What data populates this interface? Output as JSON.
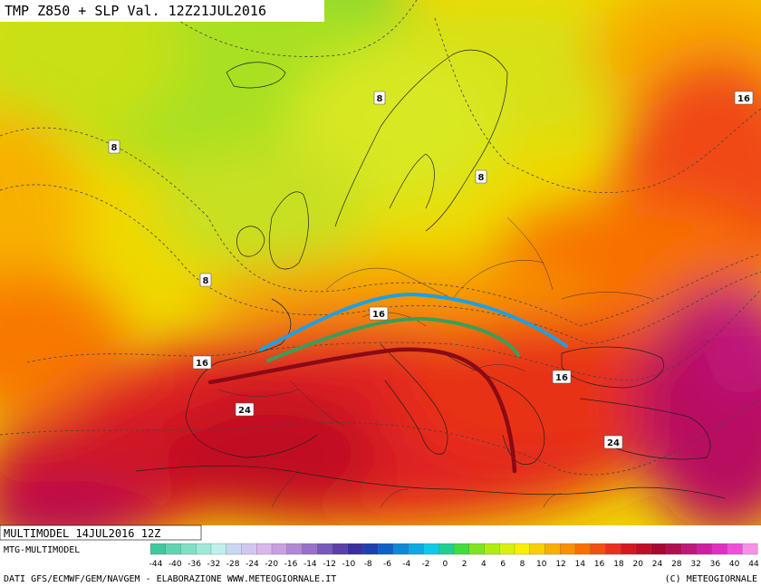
{
  "header": {
    "title": "TMP Z850 + SLP Val. 12Z21JUL2016"
  },
  "map": {
    "isotherm_labels": [
      {
        "value": "8",
        "id": "label-8-north-atlantic"
      },
      {
        "value": "8",
        "id": "label-8-norway"
      },
      {
        "value": "8",
        "id": "label-8-baltic"
      },
      {
        "value": "8",
        "id": "label-8-biscay"
      },
      {
        "value": "16",
        "id": "label-16-russia"
      },
      {
        "value": "16",
        "id": "label-16-alps"
      },
      {
        "value": "16",
        "id": "label-16-spain-north"
      },
      {
        "value": "16",
        "id": "label-16-black-sea"
      },
      {
        "value": "24",
        "id": "label-24-spain"
      },
      {
        "value": "24",
        "id": "label-24-turkey"
      }
    ],
    "colors": {
      "blue_line": "#1fa0e0",
      "green_line": "#3a9e5a",
      "darkred_line": "#8b0a14"
    }
  },
  "footer": {
    "model_run": "MULTIMODEL 14JUL2016 12Z",
    "model_name": "MTG-MULTIMODEL",
    "credits": "DATI GFS/ECMWF/GEM/NAVGEM - ELABORAZIONE WWW.METEOGIORNALE.IT",
    "copyright": "(C) METEOGIORNALE"
  },
  "color_scale": {
    "ticks": [
      "-44",
      "-40",
      "-36",
      "-32",
      "-28",
      "-24",
      "-20",
      "-16",
      "-14",
      "-12",
      "-10",
      "-8",
      "-6",
      "-4",
      "-2",
      "0",
      "2",
      "4",
      "6",
      "8",
      "10",
      "12",
      "14",
      "16",
      "18",
      "20",
      "24",
      "28",
      "32",
      "36",
      "40",
      "44"
    ],
    "colors": [
      "#40c8a0",
      "#60d4b0",
      "#80e0c4",
      "#a0e8d8",
      "#c0f0ec",
      "#c8d8f0",
      "#d0c8f0",
      "#d8b8ec",
      "#c8a0e0",
      "#b088d4",
      "#9870c8",
      "#7858b8",
      "#5a40a8",
      "#3a30a0",
      "#2040b0",
      "#1060c8",
      "#1088d8",
      "#10a8e0",
      "#10c8e8",
      "#20d090",
      "#40dc40",
      "#80e420",
      "#b0ec10",
      "#d8f010",
      "#f8f000",
      "#f8d000",
      "#f8b000",
      "#f89000",
      "#f87000",
      "#f05010",
      "#e83020",
      "#d81820",
      "#c00c28",
      "#a80830",
      "#b01050",
      "#c01878",
      "#d020a0",
      "#e030c0",
      "#f050d8",
      "#f890e8"
    ]
  }
}
